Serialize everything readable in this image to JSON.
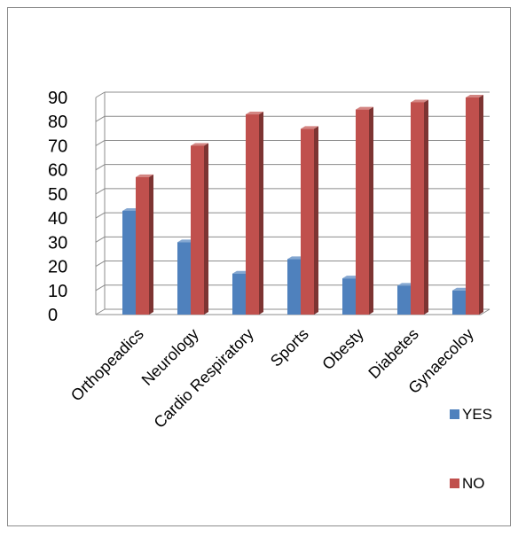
{
  "chart_data": {
    "type": "bar",
    "title": "",
    "xlabel": "",
    "ylabel": "",
    "categories": [
      "Orthopeadics",
      "Neurology",
      "Cardio Respiratory",
      "Sports",
      "Obesty",
      "Diabetes",
      "Gynaecoloy"
    ],
    "series": [
      {
        "name": "YES",
        "values": [
          43,
          30,
          17,
          23,
          15,
          12,
          10
        ],
        "color": "#4f81bd"
      },
      {
        "name": "NO",
        "values": [
          57,
          70,
          83,
          77,
          85,
          88,
          90
        ],
        "color": "#c0504d"
      }
    ],
    "ylim": [
      0,
      90
    ],
    "yticks": [
      0,
      10,
      20,
      30,
      40,
      50,
      60,
      70,
      80,
      90
    ],
    "grid": true,
    "legend_position": "right",
    "style": "3d-clustered-column"
  }
}
